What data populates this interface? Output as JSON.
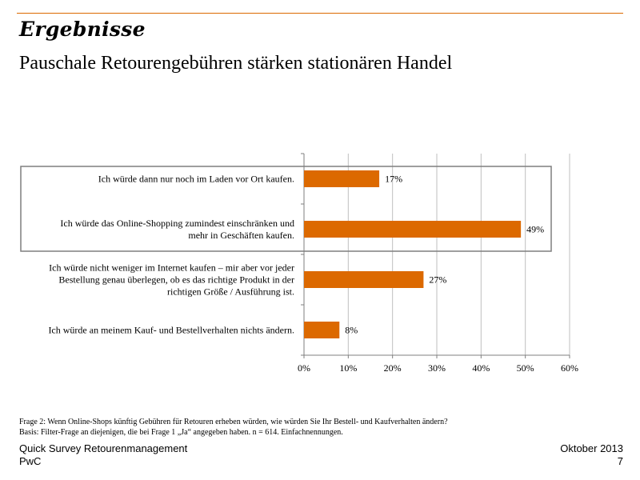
{
  "page": {
    "title": "Ergebnisse",
    "subtitle": "Pauschale Retourengebühren stärken stationären Handel"
  },
  "chart_data": {
    "type": "bar",
    "orientation": "horizontal",
    "categories": [
      [
        "Ich würde dann nur noch im Laden vor Ort kaufen."
      ],
      [
        "Ich würde das Online-Shopping zumindest einschränken und",
        "mehr in Geschäften kaufen."
      ],
      [
        "Ich würde nicht weniger im Internet kaufen – mir aber vor jeder",
        "Bestellung genau überlegen, ob es das richtige Produkt in der",
        "richtigen Größe / Ausführung ist."
      ],
      [
        "Ich würde an meinem Kauf- und Bestellverhalten nichts ändern."
      ]
    ],
    "values": [
      17,
      49,
      27,
      8
    ],
    "value_labels": [
      "17%",
      "49%",
      "27%",
      "8%"
    ],
    "xlim": [
      0,
      60
    ],
    "xticks": [
      0,
      10,
      20,
      30,
      40,
      50,
      60
    ],
    "xtick_labels": [
      "0%",
      "10%",
      "20%",
      "30%",
      "40%",
      "50%",
      "60%"
    ],
    "bar_color": "#dc6900",
    "highlight_box_categories": [
      0,
      1
    ],
    "grid": true
  },
  "footnote": {
    "question": "Frage 2: Wenn Online-Shops künftig Gebühren für Retouren erheben würden, wie würden Sie Ihr Bestell- und Kaufverhalten ändern?",
    "basis": "Basis: Filter-Frage an diejenigen, die bei Frage 1 „Ja“ angegeben haben. n = 614. Einfachnennungen."
  },
  "footer": {
    "left_1": "Quick Survey Retourenmanagement",
    "left_2": "PwC",
    "right_1": "Oktober 2013",
    "right_2": "7"
  },
  "colors": {
    "accent": "#dc6900"
  }
}
